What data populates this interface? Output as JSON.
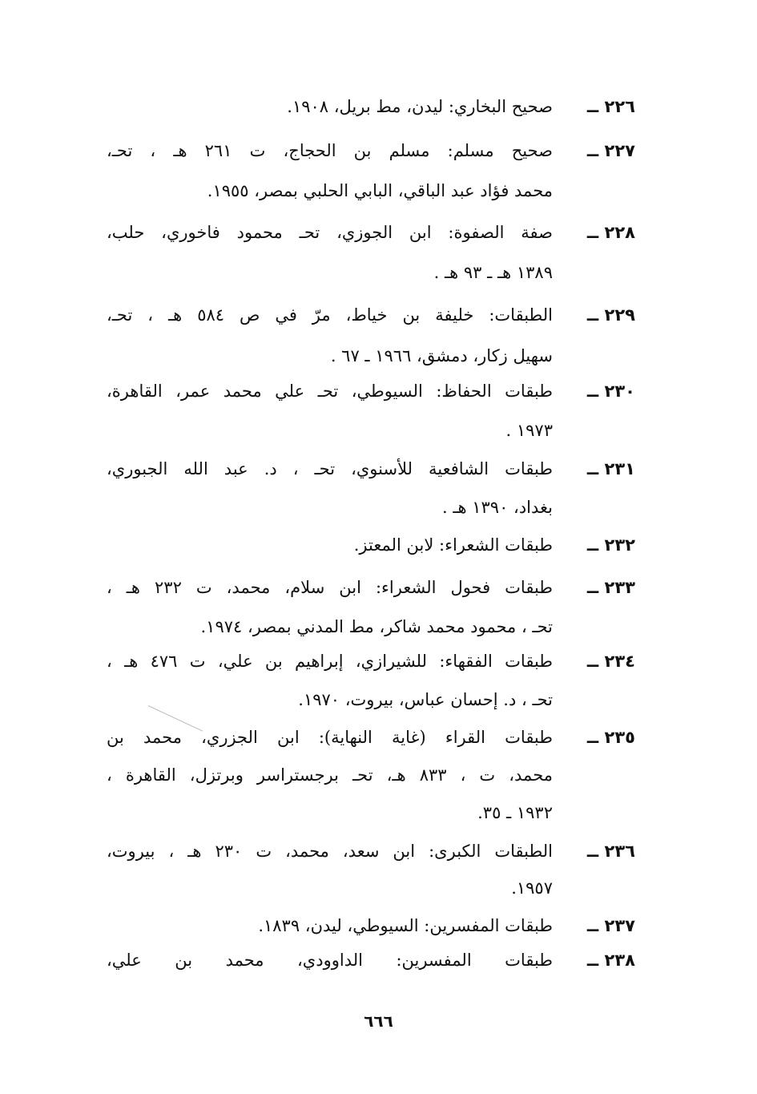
{
  "entries": [
    {
      "number": "٢٢٦ ــ",
      "lines": [
        "صحيح البخاري: ليدن، مط بريل، ١٩٠٨."
      ]
    },
    {
      "number": "٢٢٧ ــ",
      "lines": [
        "صحيح مسلم: مسلم بن الحجاج، ت ٢٦١ هـ ، تحـ،",
        "محمد فؤاد عبد الباقي، البابي الحلبي بمصر، ١٩٥٥."
      ]
    },
    {
      "number": "٢٢٨ ــ",
      "lines": [
        "صفة الصفوة: ابن الجوزي، تحـ محمود فاخوري، حلب،",
        "١٣٨٩ هـ ـ ٩٣ هـ ."
      ]
    },
    {
      "number": "٢٢٩ ــ",
      "lines": [
        "الطبقات: خليفة بن خياط، مرّ في ص ٥٨٤ هـ ، تحـ،",
        "سهيل زكار، دمشق، ١٩٦٦ ـ ٦٧ ."
      ]
    },
    {
      "number": "٢٣٠ ــ",
      "lines": [
        "طبقات الحفاظ: السيوطي، تحـ علي محمد عمر، القاهرة،",
        "١٩٧٣ ."
      ]
    },
    {
      "number": "٢٣١ ــ",
      "lines": [
        "طبقات الشافعية للأسنوي، تحـ ، د. عبد الله الجبوري،",
        "بغداد، ١٣٩٠ هـ ."
      ]
    },
    {
      "number": "٢٣٢ ــ",
      "lines": [
        "طبقات الشعراء: لابن المعتز."
      ]
    },
    {
      "number": "٢٣٣ ــ",
      "lines": [
        "طبقات فحول الشعراء: ابن سلام، محمد، ت ٢٣٢ هـ ،",
        "تحـ ، محمود محمد شاكر، مط المدني بمصر، ١٩٧٤."
      ]
    },
    {
      "number": "٢٣٤ ــ",
      "lines": [
        "طبقات الفقهاء: للشيرازي، إبراهيم بن علي، ت ٤٧٦ هـ ،",
        "تحـ ، د. إحسان عباس، بيروت، ١٩٧٠."
      ]
    },
    {
      "number": "٢٣٥ ــ",
      "lines": [
        "طبقات القراء (غاية النهاية): ابن الجزري، محمد بن",
        "محمد، ت ، ٨٣٣ هـ، تحـ برجستراسر وبرتزل، القاهرة ،",
        "١٩٣٢ ـ ٣٥."
      ]
    },
    {
      "number": "٢٣٦ ــ",
      "lines": [
        "الطبقات الكبرى: ابن سعد، محمد، ت ٢٣٠ هـ ، بيروت،",
        "١٩٥٧."
      ]
    },
    {
      "number": "٢٣٧ ــ",
      "lines": [
        "طبقات المفسرين: السيوطي، ليدن، ١٨٣٩."
      ]
    },
    {
      "number": "٢٣٨ ــ",
      "lines": [
        "طبقات المفسرين: الداوودي، محمد بن علي،"
      ]
    }
  ],
  "page_number": "٦٦٦"
}
